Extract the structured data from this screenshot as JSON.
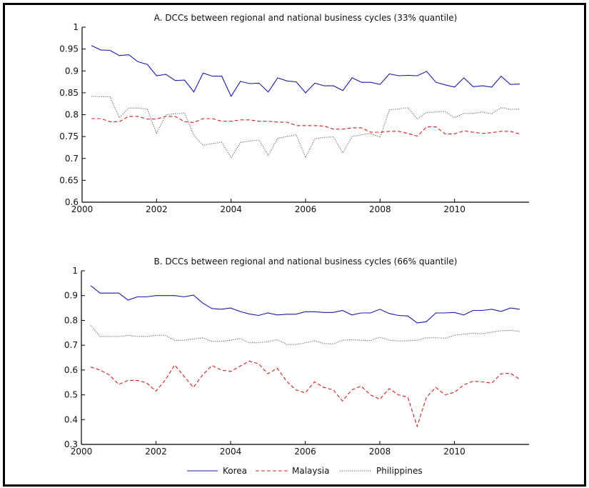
{
  "chart_data": [
    {
      "type": "line",
      "title": "A. DCCs between regional and national business cycles (33% quantile)",
      "xlabel": "",
      "ylabel": "",
      "xlim": [
        2000,
        2012
      ],
      "ylim": [
        0.6,
        1
      ],
      "xticks": [
        2000,
        2002,
        2004,
        2006,
        2008,
        2010
      ],
      "xtick_labels": [
        "2000",
        "2002",
        "2004",
        "2006",
        "2008",
        "2010"
      ],
      "yticks": [
        0.6,
        0.65,
        0.7,
        0.75,
        0.8,
        0.85,
        0.9,
        0.95,
        1
      ],
      "ytick_labels": [
        "0.6",
        "0.65",
        "0.7",
        "0.75",
        "0.8",
        "0.85",
        "0.9",
        "0.95",
        "1"
      ],
      "grid": false,
      "x_start": 2000.25,
      "x_step": 0.25,
      "series": [
        {
          "name": "Korea",
          "color": "#1a1aaa",
          "style": "solid",
          "values": [
            0.958,
            0.948,
            0.947,
            0.935,
            0.937,
            0.921,
            0.915,
            0.889,
            0.892,
            0.878,
            0.879,
            0.852,
            0.895,
            0.888,
            0.888,
            0.842,
            0.876,
            0.871,
            0.872,
            0.852,
            0.884,
            0.877,
            0.875,
            0.85,
            0.872,
            0.866,
            0.866,
            0.855,
            0.884,
            0.874,
            0.874,
            0.869,
            0.893,
            0.889,
            0.89,
            0.889,
            0.899,
            0.874,
            0.868,
            0.863,
            0.884,
            0.864,
            0.866,
            0.863,
            0.888,
            0.869,
            0.87
          ]
        },
        {
          "name": "Malaysia",
          "color": "#d42020",
          "style": "dashed",
          "values": [
            0.791,
            0.791,
            0.784,
            0.784,
            0.796,
            0.796,
            0.79,
            0.79,
            0.796,
            0.796,
            0.784,
            0.782,
            0.791,
            0.791,
            0.785,
            0.785,
            0.788,
            0.788,
            0.785,
            0.785,
            0.783,
            0.783,
            0.775,
            0.775,
            0.775,
            0.774,
            0.767,
            0.767,
            0.77,
            0.77,
            0.76,
            0.76,
            0.762,
            0.762,
            0.757,
            0.751,
            0.772,
            0.772,
            0.756,
            0.756,
            0.763,
            0.76,
            0.757,
            0.759,
            0.762,
            0.762,
            0.756
          ]
        },
        {
          "name": "Philippines",
          "color": "#555555",
          "style": "dotted",
          "values": [
            0.842,
            0.841,
            0.841,
            0.793,
            0.815,
            0.815,
            0.813,
            0.757,
            0.8,
            0.802,
            0.804,
            0.753,
            0.73,
            0.734,
            0.737,
            0.702,
            0.736,
            0.74,
            0.742,
            0.707,
            0.746,
            0.75,
            0.754,
            0.702,
            0.745,
            0.748,
            0.749,
            0.713,
            0.75,
            0.754,
            0.757,
            0.748,
            0.811,
            0.813,
            0.816,
            0.79,
            0.805,
            0.806,
            0.807,
            0.793,
            0.803,
            0.803,
            0.806,
            0.802,
            0.816,
            0.812,
            0.813
          ]
        }
      ]
    },
    {
      "type": "line",
      "title": "B. DCCs between regional and national business cycles (66% quantile)",
      "xlabel": "",
      "ylabel": "",
      "xlim": [
        2000,
        2012
      ],
      "ylim": [
        0.3,
        1
      ],
      "xticks": [
        2000,
        2002,
        2004,
        2006,
        2008,
        2010
      ],
      "xtick_labels": [
        "2000",
        "2002",
        "2004",
        "2006",
        "2008",
        "2010"
      ],
      "yticks": [
        0.3,
        0.4,
        0.5,
        0.6,
        0.7,
        0.8,
        0.9,
        1
      ],
      "ytick_labels": [
        "0.3",
        "0.4",
        "0.5",
        "0.6",
        "0.7",
        "0.8",
        "0.9",
        "1"
      ],
      "grid": false,
      "x_start": 2000.25,
      "x_step": 0.25,
      "series": [
        {
          "name": "Korea",
          "color": "#1a1aaa",
          "style": "solid",
          "values": [
            0.94,
            0.91,
            0.91,
            0.91,
            0.882,
            0.895,
            0.895,
            0.9,
            0.9,
            0.9,
            0.895,
            0.902,
            0.87,
            0.848,
            0.845,
            0.85,
            0.836,
            0.826,
            0.82,
            0.83,
            0.822,
            0.825,
            0.825,
            0.835,
            0.835,
            0.832,
            0.832,
            0.84,
            0.822,
            0.83,
            0.83,
            0.845,
            0.828,
            0.82,
            0.818,
            0.79,
            0.795,
            0.83,
            0.83,
            0.832,
            0.822,
            0.84,
            0.84,
            0.845,
            0.836,
            0.85,
            0.845
          ]
        },
        {
          "name": "Malaysia",
          "color": "#d42020",
          "style": "dashed",
          "values": [
            0.612,
            0.6,
            0.58,
            0.542,
            0.558,
            0.558,
            0.548,
            0.515,
            0.56,
            0.62,
            0.575,
            0.53,
            0.58,
            0.618,
            0.6,
            0.594,
            0.615,
            0.636,
            0.625,
            0.585,
            0.607,
            0.555,
            0.52,
            0.508,
            0.552,
            0.53,
            0.52,
            0.475,
            0.52,
            0.535,
            0.5,
            0.482,
            0.525,
            0.5,
            0.49,
            0.373,
            0.49,
            0.53,
            0.5,
            0.51,
            0.54,
            0.555,
            0.552,
            0.547,
            0.585,
            0.587,
            0.563
          ]
        },
        {
          "name": "Philippines",
          "color": "#555555",
          "style": "dotted",
          "values": [
            0.78,
            0.735,
            0.735,
            0.735,
            0.74,
            0.735,
            0.735,
            0.74,
            0.74,
            0.72,
            0.72,
            0.725,
            0.73,
            0.715,
            0.715,
            0.72,
            0.727,
            0.71,
            0.71,
            0.715,
            0.722,
            0.703,
            0.703,
            0.71,
            0.718,
            0.707,
            0.705,
            0.72,
            0.722,
            0.72,
            0.718,
            0.733,
            0.72,
            0.717,
            0.718,
            0.72,
            0.73,
            0.73,
            0.728,
            0.74,
            0.745,
            0.748,
            0.746,
            0.753,
            0.758,
            0.76,
            0.755
          ]
        }
      ]
    }
  ],
  "legend": {
    "placement": "bottom-center",
    "items": [
      {
        "label": "Korea",
        "color": "#1a1aaa",
        "style": "solid"
      },
      {
        "label": "Malaysia",
        "color": "#d42020",
        "style": "dashed"
      },
      {
        "label": "Philippines",
        "color": "#555555",
        "style": "dotted"
      }
    ]
  }
}
